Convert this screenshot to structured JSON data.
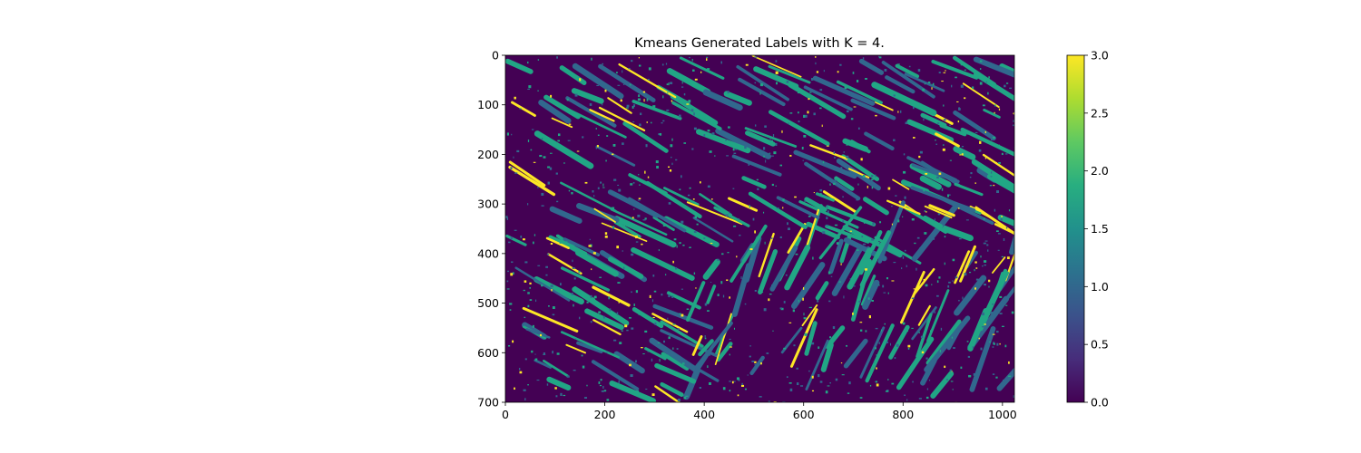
{
  "chart_data": {
    "type": "heatmap",
    "title": "Kmeans Generated Labels with K = 4.",
    "xlabel": "",
    "ylabel": "",
    "xlim": [
      0,
      1024
    ],
    "ylim": [
      700,
      0
    ],
    "x_ticks": [
      0,
      200,
      400,
      600,
      800,
      1000
    ],
    "y_ticks": [
      0,
      100,
      200,
      300,
      400,
      500,
      600,
      700
    ],
    "clusters": [
      0,
      1,
      2,
      3
    ],
    "colormap": "viridis",
    "colorbar": {
      "range": [
        0.0,
        3.0
      ],
      "ticks": [
        "0.0",
        "0.5",
        "1.0",
        "1.5",
        "2.0",
        "2.5",
        "3.0"
      ]
    },
    "cluster_colors": [
      "#440154",
      "#31688e",
      "#21a685",
      "#fde725"
    ],
    "grid": false
  }
}
